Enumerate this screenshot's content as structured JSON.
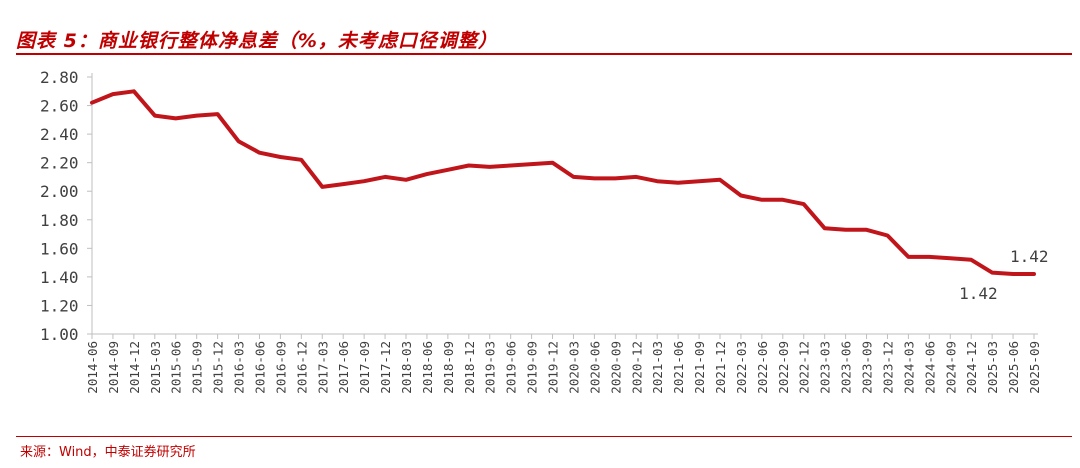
{
  "title": "图表 5：商业银行整体净息差（%，未考虑口径调整）",
  "source": "来源：Wind，中泰证券研究所",
  "colors": {
    "accent": "#c00000",
    "line": "#c0161b",
    "axis": "#bfbfbf",
    "text": "#404040"
  },
  "chart_data": {
    "type": "line",
    "categories": [
      "2014-06",
      "2014-09",
      "2014-12",
      "2015-03",
      "2015-06",
      "2015-09",
      "2015-12",
      "2016-03",
      "2016-06",
      "2016-09",
      "2016-12",
      "2017-03",
      "2017-06",
      "2017-09",
      "2017-12",
      "2018-03",
      "2018-06",
      "2018-09",
      "2018-12",
      "2019-03",
      "2019-06",
      "2019-09",
      "2019-12",
      "2020-03",
      "2020-06",
      "2020-09",
      "2020-12",
      "2021-03",
      "2021-06",
      "2021-09",
      "2021-12",
      "2022-03",
      "2022-06",
      "2022-09",
      "2022-12",
      "2023-03",
      "2023-06",
      "2023-09",
      "2023-12",
      "2024-03",
      "2024-06",
      "2024-09",
      "2024-12",
      "2025-03",
      "2025-06",
      "2025-09"
    ],
    "series": [
      {
        "values": [
          2.62,
          2.68,
          2.7,
          2.53,
          2.51,
          2.53,
          2.54,
          2.35,
          2.27,
          2.24,
          2.22,
          2.03,
          2.05,
          2.07,
          2.1,
          2.08,
          2.12,
          2.15,
          2.18,
          2.17,
          2.18,
          2.19,
          2.2,
          2.1,
          2.09,
          2.09,
          2.1,
          2.07,
          2.06,
          2.07,
          2.08,
          1.97,
          1.94,
          1.94,
          1.91,
          1.74,
          1.73,
          1.73,
          1.69,
          1.54,
          1.54,
          1.53,
          1.52,
          1.43,
          1.42,
          1.42
        ]
      }
    ],
    "yticks": [
      "2.80",
      "2.60",
      "2.40",
      "2.20",
      "2.00",
      "1.80",
      "1.60",
      "1.40",
      "1.20",
      "1.00"
    ],
    "ylim": [
      1.0,
      2.8
    ],
    "annotations": [
      {
        "index": 44,
        "text": "1.42"
      },
      {
        "index": 45,
        "text": "1.42"
      }
    ],
    "grid": false,
    "legend": "none"
  }
}
